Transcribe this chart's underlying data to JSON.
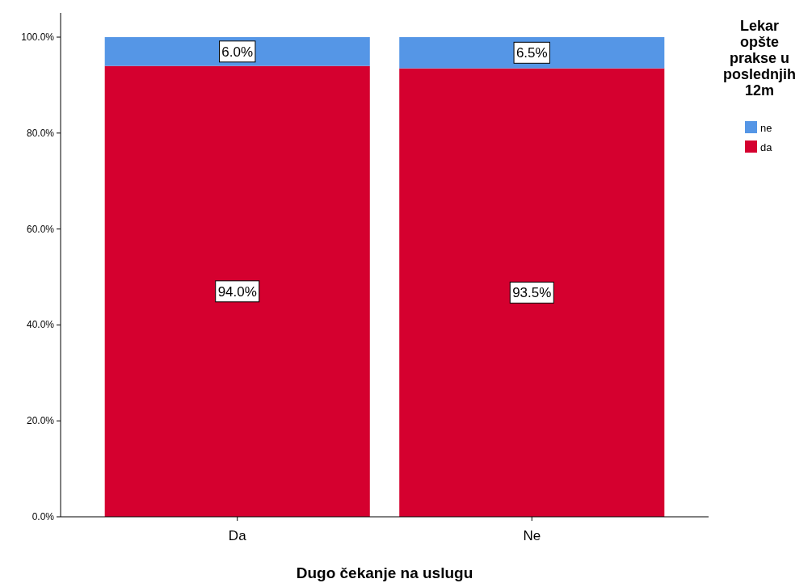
{
  "chart_data": {
    "type": "bar",
    "stacked": true,
    "xlabel": "Dugo čekanje na uslugu",
    "legend_title": "Lekar opšte prakse u poslednjih 12m",
    "legend": "top right",
    "categories": [
      "Da",
      "Ne"
    ],
    "series": [
      {
        "name": "da",
        "color": "#d5002f",
        "values": [
          94.0,
          93.5
        ],
        "value_labels": [
          "94.0%",
          "93.5%"
        ]
      },
      {
        "name": "ne",
        "color": "#5596e6",
        "values": [
          6.0,
          6.5
        ],
        "value_labels": [
          "6.0%",
          "6.5%"
        ]
      }
    ],
    "ylim": [
      0,
      100
    ],
    "yticks": [
      {
        "value": 0,
        "label": "0.0%"
      },
      {
        "value": 20,
        "label": "20.0%"
      },
      {
        "value": 40,
        "label": "40.0%"
      },
      {
        "value": 60,
        "label": "60.0%"
      },
      {
        "value": 80,
        "label": "80.0%"
      },
      {
        "value": 100,
        "label": "100.0%"
      }
    ]
  }
}
